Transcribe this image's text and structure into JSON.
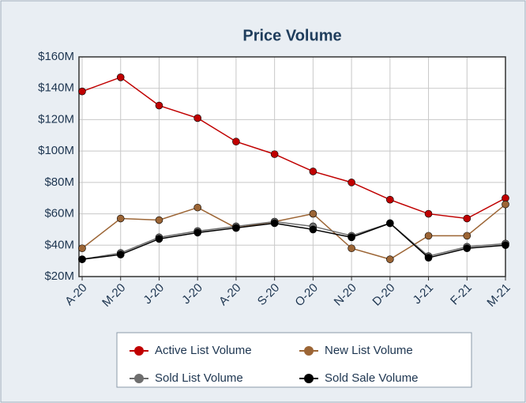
{
  "chart_data": {
    "type": "line",
    "title": "Price Volume",
    "categories": [
      "A-20",
      "M-20",
      "J-20",
      "J-20",
      "A-20",
      "S-20",
      "O-20",
      "N-20",
      "D-20",
      "J-21",
      "F-21",
      "M-21"
    ],
    "series": [
      {
        "name": "Active List Volume",
        "color": "#c00000",
        "values": [
          138000000,
          147000000,
          129000000,
          121000000,
          106000000,
          98000000,
          87000000,
          80000000,
          69000000,
          60000000,
          57000000,
          70000000
        ]
      },
      {
        "name": "New List Volume",
        "color": "#9c6535",
        "values": [
          38000000,
          57000000,
          56000000,
          64000000,
          51000000,
          55000000,
          60000000,
          38000000,
          31000000,
          46000000,
          46000000,
          66000000
        ]
      },
      {
        "name": "Sold List Volume",
        "color": "#6e6e6e",
        "values": [
          31000000,
          35000000,
          45000000,
          49000000,
          52000000,
          55000000,
          52000000,
          46000000,
          54000000,
          33000000,
          39000000,
          41000000
        ]
      },
      {
        "name": "Sold Sale Volume",
        "color": "#000000",
        "values": [
          31000000,
          34000000,
          44000000,
          48000000,
          51000000,
          54000000,
          50000000,
          45000000,
          54000000,
          32000000,
          38000000,
          40000000
        ]
      }
    ],
    "ylim": [
      20000000,
      160000000
    ],
    "yticks": [
      {
        "value": 20000000,
        "label": "$20M"
      },
      {
        "value": 40000000,
        "label": "$40M"
      },
      {
        "value": 60000000,
        "label": "$60M"
      },
      {
        "value": 80000000,
        "label": "$80M"
      },
      {
        "value": 100000000,
        "label": "$100M"
      },
      {
        "value": 120000000,
        "label": "$120M"
      },
      {
        "value": 140000000,
        "label": "$140M"
      },
      {
        "value": 160000000,
        "label": "$160M"
      }
    ],
    "grid": true
  }
}
